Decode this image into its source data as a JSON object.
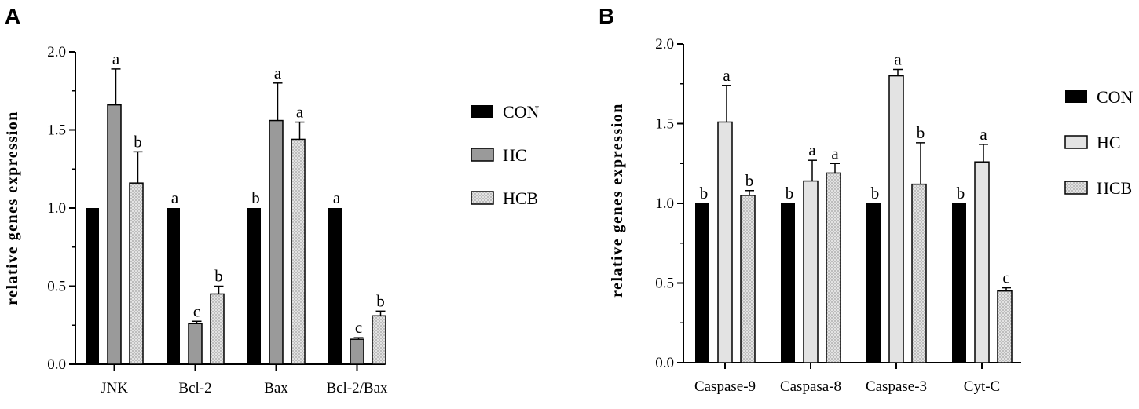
{
  "colors": {
    "CON": "#000000",
    "HC": "#9a9a9a",
    "HC_B": "#e3e3e3",
    "HCB_fill": "#cfcfcf",
    "HCB_dot": "#ffffff"
  },
  "chart_data": [
    {
      "panel": "A",
      "type": "bar",
      "ylabel": "relative genes expression",
      "ylim": [
        0,
        2.0
      ],
      "yticks": [
        "0.0",
        "0.5",
        "1.0",
        "1.5",
        "2.0"
      ],
      "categories": [
        "JNK",
        "Bcl-2",
        "Bax",
        "Bcl-2/Bax"
      ],
      "legend": [
        "CON",
        "HC",
        "HCB"
      ],
      "series": [
        {
          "name": "CON",
          "values": [
            1.0,
            1.0,
            1.0,
            1.0
          ],
          "errors": [
            0,
            0,
            0,
            0
          ],
          "labels": [
            "",
            "a",
            "b",
            "a"
          ]
        },
        {
          "name": "HC",
          "values": [
            1.66,
            0.26,
            1.56,
            0.16
          ],
          "errors": [
            0.23,
            0.015,
            0.24,
            0.01
          ],
          "labels": [
            "a",
            "c",
            "a",
            "c"
          ]
        },
        {
          "name": "HCB",
          "values": [
            1.16,
            0.45,
            1.44,
            0.31
          ],
          "errors": [
            0.2,
            0.05,
            0.11,
            0.03
          ],
          "labels": [
            "b",
            "b",
            "a",
            "b"
          ]
        }
      ]
    },
    {
      "panel": "B",
      "type": "bar",
      "ylabel": "relative genes expression",
      "ylim": [
        0,
        2.0
      ],
      "yticks": [
        "0.0",
        "0.5",
        "1.0",
        "1.5",
        "2.0"
      ],
      "categories": [
        "Caspase-9",
        "Caspasa-8",
        "Caspase-3",
        "Cyt-C"
      ],
      "legend": [
        "CON",
        "HC",
        "HCB"
      ],
      "series": [
        {
          "name": "CON",
          "values": [
            1.0,
            1.0,
            1.0,
            1.0
          ],
          "errors": [
            0,
            0,
            0,
            0
          ],
          "labels": [
            "b",
            "b",
            "b",
            "b"
          ]
        },
        {
          "name": "HC",
          "values": [
            1.51,
            1.14,
            1.8,
            1.26
          ],
          "errors": [
            0.23,
            0.13,
            0.04,
            0.11
          ],
          "labels": [
            "a",
            "a",
            "a",
            "a"
          ]
        },
        {
          "name": "HCB",
          "values": [
            1.05,
            1.19,
            1.12,
            0.45
          ],
          "errors": [
            0.03,
            0.06,
            0.26,
            0.02
          ],
          "labels": [
            "b",
            "a",
            "b",
            "c"
          ]
        }
      ]
    }
  ]
}
